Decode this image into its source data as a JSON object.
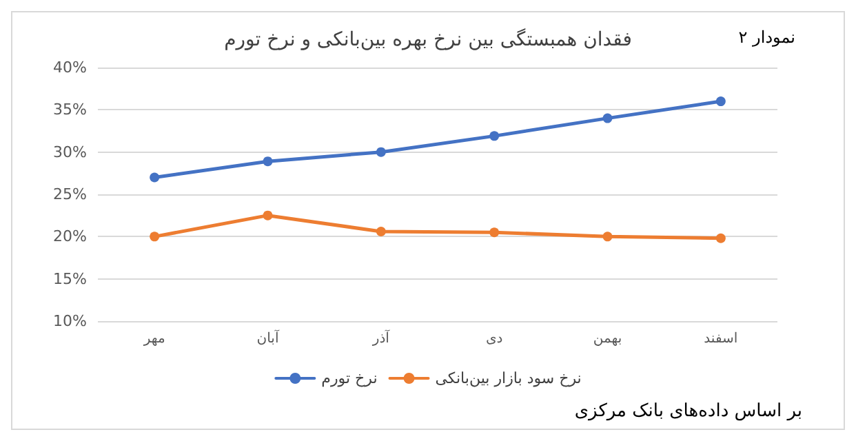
{
  "chart_data": {
    "type": "line",
    "title": "فقدان همبستگی بین نرخ بهره بین‌بانکی و نرخ تورم",
    "annotations": [
      "نمودار ۲",
      "بر اساس داده‌های بانک مرکزی"
    ],
    "categories": [
      "مهر",
      "آبان",
      "آذر",
      "دی",
      "بهمن",
      "اسفند"
    ],
    "series": [
      {
        "name": "نرخ تورم",
        "color": "#4472c4",
        "values": [
          27,
          28.9,
          30,
          31.9,
          34,
          36
        ]
      },
      {
        "name": "نرخ سود بازار بین‌بانکی",
        "color": "#ed7d31",
        "values": [
          20,
          22.5,
          20.6,
          20.5,
          20,
          19.8
        ]
      }
    ],
    "ylim": [
      10,
      40
    ],
    "yticks": [
      {
        "value": 10,
        "label": "10%"
      },
      {
        "value": 15,
        "label": "15%"
      },
      {
        "value": 20,
        "label": "20%"
      },
      {
        "value": 25,
        "label": "25%"
      },
      {
        "value": 30,
        "label": "30%"
      },
      {
        "value": 35,
        "label": "35%"
      },
      {
        "value": 40,
        "label": "40%"
      }
    ],
    "grid": "y",
    "legend": "bottom",
    "marker": "circle",
    "line_style": "solid"
  }
}
